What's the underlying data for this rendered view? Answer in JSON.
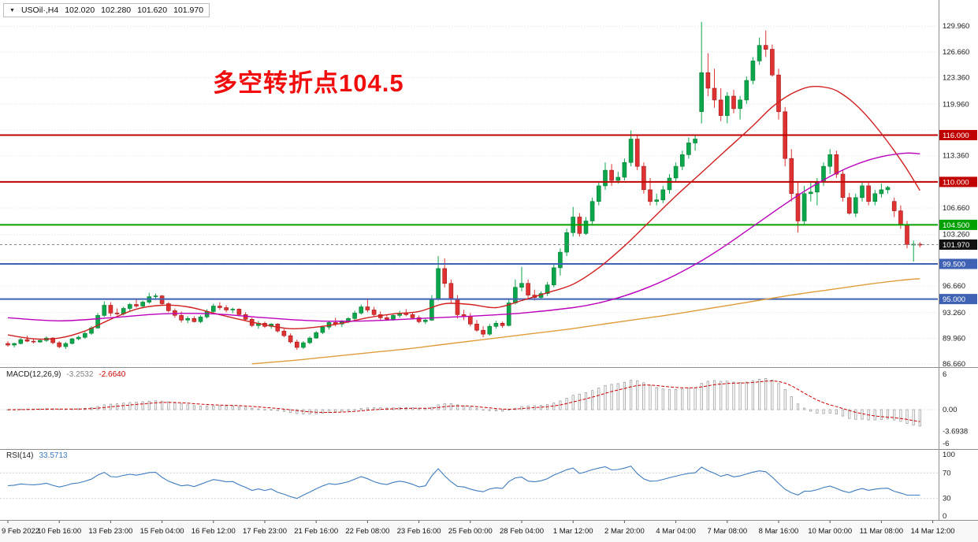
{
  "quote_bar": {
    "dropdown_icon": "▼",
    "symbol": "USOil·,H4",
    "open": "102.020",
    "high": "102.280",
    "low": "101.620",
    "close": "101.970"
  },
  "annotation": {
    "text": "多空转折点104.5",
    "color": "#f20d0d"
  },
  "macd_panel": {
    "label": "MACD(12,26,9)",
    "main_value": "-3.2532",
    "signal_value": "-2.6640"
  },
  "rsi_panel": {
    "label": "RSI(14)",
    "value": "33.5713"
  },
  "chart_data": {
    "type": "candlestick",
    "title": "USOil H4",
    "symbol": "USOil",
    "timeframe": "H4",
    "y_range": [
      86.3,
      132.5
    ],
    "x_labels": [
      "9 Feb 2022",
      "10 Feb 16:00",
      "13 Feb 23:00",
      "15 Feb 04:00",
      "16 Feb 12:00",
      "17 Feb 23:00",
      "21 Feb 16:00",
      "22 Feb 08:00",
      "23 Feb 16:00",
      "25 Feb 00:00",
      "28 Feb 04:00",
      "1 Mar 12:00",
      "2 Mar 20:00",
      "4 Mar 04:00",
      "7 Mar 08:00",
      "8 Mar 16:00",
      "10 Mar 00:00",
      "11 Mar 08:00",
      "14 Mar 12:00"
    ],
    "price_grid_levels": [
      86.66,
      89.96,
      93.26,
      96.66,
      99.96,
      103.26,
      106.66,
      109.96,
      113.36,
      116.66,
      119.96,
      123.36,
      126.66,
      129.96
    ],
    "price_axis_labels": [
      {
        "v": 129.96,
        "t": "129.960"
      },
      {
        "v": 126.66,
        "t": "126.660"
      },
      {
        "v": 123.36,
        "t": "123.360"
      },
      {
        "v": 119.96,
        "t": "119.960"
      },
      {
        "v": 113.36,
        "t": "113.360"
      },
      {
        "v": 106.66,
        "t": "106.660"
      },
      {
        "v": 103.26,
        "t": "103.260"
      },
      {
        "v": 96.66,
        "t": "96.660"
      },
      {
        "v": 93.26,
        "t": "93.260"
      },
      {
        "v": 89.96,
        "t": "89.960"
      },
      {
        "v": 86.66,
        "t": "86.660"
      }
    ],
    "levels": [
      {
        "price": 116.0,
        "label": "116.000",
        "color": "#c00000",
        "width": 2
      },
      {
        "price": 110.0,
        "label": "110.000",
        "color": "#c00000",
        "width": 2
      },
      {
        "price": 104.5,
        "label": "104.500",
        "color": "#00a000",
        "width": 2
      },
      {
        "price": 101.97,
        "label": "101.970",
        "color": "#111111",
        "width": 1,
        "style": "current"
      },
      {
        "price": 99.5,
        "label": "99.500",
        "color": "#3f62b5",
        "width": 2
      },
      {
        "price": 95.0,
        "label": "95.000",
        "color": "#3f62b5",
        "width": 2
      }
    ],
    "ma_lines": [
      {
        "name": "ma-fast-red",
        "color": "#d02020",
        "points": [
          [
            0,
            90.4
          ],
          [
            4,
            89.9
          ],
          [
            8,
            90.0
          ],
          [
            12,
            90.9
          ],
          [
            16,
            92.4
          ],
          [
            20,
            93.7
          ],
          [
            24,
            94.2
          ],
          [
            28,
            94.0
          ],
          [
            32,
            93.2
          ],
          [
            36,
            92.4
          ],
          [
            40,
            91.7
          ],
          [
            44,
            91.2
          ],
          [
            48,
            91.4
          ],
          [
            52,
            91.9
          ],
          [
            56,
            92.6
          ],
          [
            60,
            93.1
          ],
          [
            64,
            93.4
          ],
          [
            68,
            94.4
          ],
          [
            72,
            94.3
          ],
          [
            76,
            93.9
          ],
          [
            80,
            94.8
          ],
          [
            84,
            95.8
          ],
          [
            88,
            96.9
          ],
          [
            92,
            99.0
          ],
          [
            96,
            101.8
          ],
          [
            100,
            105.0
          ],
          [
            104,
            108.2
          ],
          [
            108,
            111.2
          ],
          [
            112,
            114.2
          ],
          [
            116,
            117.2
          ],
          [
            119,
            119.6
          ],
          [
            122,
            121.3
          ],
          [
            125,
            122.2
          ],
          [
            128,
            122.0
          ],
          [
            130,
            121.2
          ],
          [
            132,
            119.9
          ],
          [
            134,
            118.2
          ],
          [
            136,
            116.2
          ],
          [
            138,
            114.0
          ],
          [
            140,
            111.6
          ],
          [
            142,
            108.9
          ]
        ]
      },
      {
        "name": "ma-mid-magenta",
        "color": "#bb00bb",
        "points": [
          [
            0,
            92.6
          ],
          [
            8,
            92.2
          ],
          [
            16,
            92.6
          ],
          [
            24,
            93.1
          ],
          [
            32,
            93.1
          ],
          [
            40,
            92.6
          ],
          [
            48,
            92.2
          ],
          [
            56,
            92.2
          ],
          [
            64,
            92.5
          ],
          [
            72,
            92.8
          ],
          [
            80,
            93.2
          ],
          [
            88,
            93.9
          ],
          [
            92,
            94.5
          ],
          [
            96,
            95.4
          ],
          [
            100,
            96.6
          ],
          [
            104,
            98.1
          ],
          [
            108,
            99.9
          ],
          [
            112,
            102.0
          ],
          [
            116,
            104.3
          ],
          [
            120,
            106.6
          ],
          [
            124,
            108.8
          ],
          [
            128,
            110.7
          ],
          [
            131,
            111.9
          ],
          [
            134,
            112.8
          ],
          [
            137,
            113.4
          ],
          [
            140,
            113.7
          ],
          [
            142,
            113.6
          ]
        ]
      },
      {
        "name": "ma-slow-orange",
        "color": "#e09c3c",
        "points": [
          [
            38,
            86.7
          ],
          [
            44,
            87.1
          ],
          [
            50,
            87.6
          ],
          [
            56,
            88.1
          ],
          [
            62,
            88.6
          ],
          [
            68,
            89.2
          ],
          [
            74,
            89.8
          ],
          [
            80,
            90.4
          ],
          [
            86,
            91.0
          ],
          [
            92,
            91.7
          ],
          [
            98,
            92.4
          ],
          [
            104,
            93.1
          ],
          [
            110,
            93.9
          ],
          [
            116,
            94.7
          ],
          [
            122,
            95.5
          ],
          [
            128,
            96.2
          ],
          [
            134,
            96.9
          ],
          [
            139,
            97.4
          ],
          [
            142,
            97.6
          ]
        ]
      }
    ],
    "ohlc": [
      [
        89.3,
        89.6,
        88.9,
        89.1
      ],
      [
        89.1,
        89.4,
        88.8,
        89.3
      ],
      [
        89.3,
        90.0,
        89.2,
        89.8
      ],
      [
        89.8,
        90.3,
        89.5,
        89.6
      ],
      [
        89.6,
        89.9,
        89.3,
        89.5
      ],
      [
        89.5,
        89.9,
        89.4,
        89.7
      ],
      [
        89.7,
        90.2,
        89.5,
        90.0
      ],
      [
        90.0,
        90.1,
        89.2,
        89.4
      ],
      [
        89.4,
        89.6,
        88.7,
        88.9
      ],
      [
        88.9,
        89.5,
        88.6,
        89.3
      ],
      [
        89.3,
        90.0,
        89.2,
        89.9
      ],
      [
        89.9,
        90.3,
        89.7,
        90.1
      ],
      [
        90.1,
        90.8,
        89.9,
        90.6
      ],
      [
        90.6,
        91.5,
        90.4,
        91.3
      ],
      [
        91.3,
        93.2,
        91.2,
        92.9
      ],
      [
        92.9,
        94.7,
        92.7,
        94.2
      ],
      [
        94.2,
        94.6,
        92.8,
        93.2
      ],
      [
        93.2,
        93.8,
        92.9,
        93.1
      ],
      [
        93.1,
        94.0,
        92.9,
        93.8
      ],
      [
        93.8,
        94.5,
        93.4,
        94.3
      ],
      [
        94.3,
        95.0,
        93.9,
        94.1
      ],
      [
        94.1,
        94.8,
        93.8,
        94.6
      ],
      [
        94.6,
        95.8,
        94.4,
        95.3
      ],
      [
        95.3,
        95.7,
        94.9,
        95.4
      ],
      [
        95.4,
        95.5,
        94.2,
        94.4
      ],
      [
        94.4,
        94.6,
        93.3,
        93.5
      ],
      [
        93.5,
        93.8,
        92.6,
        92.9
      ],
      [
        92.9,
        93.4,
        92.0,
        92.3
      ],
      [
        92.3,
        92.8,
        91.9,
        92.5
      ],
      [
        92.5,
        92.8,
        92.0,
        92.1
      ],
      [
        92.1,
        92.9,
        91.9,
        92.7
      ],
      [
        92.7,
        93.7,
        92.5,
        93.4
      ],
      [
        93.4,
        94.4,
        93.2,
        94.1
      ],
      [
        94.1,
        94.6,
        93.6,
        93.9
      ],
      [
        93.9,
        94.2,
        93.3,
        93.6
      ],
      [
        93.6,
        93.9,
        93.2,
        93.7
      ],
      [
        93.7,
        93.8,
        92.8,
        93.0
      ],
      [
        93.0,
        93.3,
        92.2,
        92.4
      ],
      [
        92.4,
        92.6,
        91.4,
        91.6
      ],
      [
        91.6,
        92.2,
        91.2,
        91.9
      ],
      [
        91.9,
        92.1,
        91.3,
        91.5
      ],
      [
        91.5,
        91.9,
        91.2,
        91.8
      ],
      [
        91.8,
        91.9,
        90.7,
        90.9
      ],
      [
        90.9,
        91.2,
        90.1,
        90.3
      ],
      [
        90.3,
        90.6,
        89.3,
        89.5
      ],
      [
        89.5,
        89.8,
        88.5,
        88.8
      ],
      [
        88.8,
        89.6,
        88.6,
        89.4
      ],
      [
        89.4,
        90.2,
        89.2,
        90.0
      ],
      [
        90.0,
        90.9,
        89.9,
        90.7
      ],
      [
        90.7,
        91.6,
        90.5,
        91.4
      ],
      [
        91.4,
        92.2,
        91.1,
        92.0
      ],
      [
        92.0,
        92.6,
        91.5,
        91.8
      ],
      [
        91.8,
        92.3,
        91.4,
        92.1
      ],
      [
        92.1,
        92.7,
        91.9,
        92.5
      ],
      [
        92.5,
        93.5,
        92.3,
        93.2
      ],
      [
        93.2,
        94.3,
        93.0,
        94.0
      ],
      [
        94.0,
        95.0,
        93.3,
        93.6
      ],
      [
        93.6,
        94.0,
        92.8,
        93.0
      ],
      [
        93.0,
        93.4,
        92.3,
        92.6
      ],
      [
        92.6,
        93.0,
        92.2,
        92.4
      ],
      [
        92.4,
        93.1,
        92.2,
        92.9
      ],
      [
        92.9,
        93.5,
        92.6,
        93.2
      ],
      [
        93.2,
        93.7,
        92.8,
        93.0
      ],
      [
        93.0,
        93.3,
        92.4,
        92.6
      ],
      [
        92.6,
        92.9,
        91.9,
        92.1
      ],
      [
        92.1,
        92.5,
        91.8,
        92.3
      ],
      [
        92.3,
        95.5,
        92.2,
        95.0
      ],
      [
        95.0,
        100.5,
        94.8,
        98.9
      ],
      [
        98.9,
        100.2,
        96.5,
        97.0
      ],
      [
        97.0,
        97.5,
        94.5,
        95.0
      ],
      [
        95.0,
        95.5,
        92.5,
        93.0
      ],
      [
        93.0,
        93.6,
        92.3,
        92.8
      ],
      [
        92.8,
        93.2,
        91.5,
        91.8
      ],
      [
        91.8,
        92.3,
        90.8,
        91.0
      ],
      [
        91.0,
        91.5,
        90.1,
        90.5
      ],
      [
        90.5,
        91.8,
        90.3,
        91.5
      ],
      [
        91.5,
        92.2,
        91.2,
        91.9
      ],
      [
        91.9,
        92.1,
        91.3,
        91.6
      ],
      [
        91.6,
        95.0,
        91.5,
        94.5
      ],
      [
        94.5,
        97.5,
        94.3,
        96.5
      ],
      [
        96.5,
        99.1,
        96.0,
        97.0
      ],
      [
        97.0,
        97.5,
        95.0,
        95.5
      ],
      [
        95.5,
        96.2,
        94.8,
        95.2
      ],
      [
        95.2,
        96.0,
        95.0,
        95.7
      ],
      [
        95.7,
        97.2,
        95.4,
        96.8
      ],
      [
        96.8,
        99.5,
        96.5,
        99.0
      ],
      [
        99.0,
        101.5,
        98.0,
        101.0
      ],
      [
        101.0,
        104.0,
        100.5,
        103.5
      ],
      [
        103.5,
        106.8,
        103.0,
        105.5
      ],
      [
        105.5,
        106.0,
        103.0,
        103.4
      ],
      [
        103.4,
        105.5,
        103.2,
        105.0
      ],
      [
        105.0,
        108.0,
        104.5,
        107.5
      ],
      [
        107.5,
        110.0,
        107.0,
        109.5
      ],
      [
        109.5,
        112.5,
        109.0,
        111.5
      ],
      [
        111.5,
        112.3,
        109.5,
        110.2
      ],
      [
        110.2,
        111.3,
        109.8,
        110.6
      ],
      [
        110.6,
        113.0,
        110.2,
        112.5
      ],
      [
        112.5,
        116.6,
        112.0,
        115.5
      ],
      [
        115.5,
        116.0,
        111.5,
        112.0
      ],
      [
        112.0,
        112.5,
        108.5,
        109.0
      ],
      [
        109.0,
        110.5,
        107.0,
        107.5
      ],
      [
        107.5,
        108.5,
        107.0,
        107.7
      ],
      [
        107.7,
        109.5,
        107.3,
        109.0
      ],
      [
        109.0,
        111.0,
        108.5,
        110.5
      ],
      [
        110.5,
        112.5,
        110.0,
        112.0
      ],
      [
        112.0,
        114.0,
        111.5,
        113.5
      ],
      [
        113.5,
        115.7,
        113.0,
        115.0
      ],
      [
        115.0,
        116.0,
        114.0,
        115.5
      ],
      [
        119.0,
        130.5,
        117.5,
        124.0
      ],
      [
        124.0,
        126.5,
        121.0,
        122.0
      ],
      [
        122.0,
        124.5,
        119.5,
        120.5
      ],
      [
        120.5,
        122.0,
        117.8,
        118.5
      ],
      [
        118.5,
        121.5,
        117.5,
        121.0
      ],
      [
        121.0,
        121.8,
        118.8,
        119.4
      ],
      [
        119.4,
        121.0,
        118.0,
        120.5
      ],
      [
        120.5,
        123.5,
        120.0,
        123.0
      ],
      [
        123.0,
        126.0,
        122.5,
        125.5
      ],
      [
        125.5,
        128.5,
        125.0,
        127.5
      ],
      [
        127.5,
        129.4,
        126.0,
        127.0
      ],
      [
        127.0,
        127.6,
        123.5,
        123.7
      ],
      [
        123.7,
        124.5,
        118.0,
        119.0
      ],
      [
        119.0,
        119.6,
        112.0,
        113.0
      ],
      [
        113.0,
        114.2,
        107.5,
        108.5
      ],
      [
        108.5,
        110.0,
        103.5,
        105.0
      ],
      [
        105.0,
        109.5,
        104.5,
        108.5
      ],
      [
        108.5,
        110.1,
        107.5,
        108.7
      ],
      [
        108.7,
        110.5,
        107.0,
        110.0
      ],
      [
        110.0,
        112.5,
        109.5,
        112.0
      ],
      [
        112.0,
        114.2,
        111.0,
        113.5
      ],
      [
        113.5,
        114.0,
        110.5,
        111.0
      ],
      [
        111.0,
        111.5,
        107.5,
        108.0
      ],
      [
        108.0,
        108.6,
        105.8,
        106.0
      ],
      [
        106.0,
        108.5,
        105.5,
        108.0
      ],
      [
        108.0,
        110.0,
        107.5,
        109.5
      ],
      [
        109.5,
        110.0,
        107.0,
        107.5
      ],
      [
        107.5,
        109.0,
        107.0,
        108.5
      ],
      [
        108.5,
        109.8,
        108.0,
        109.0
      ],
      [
        109.0,
        109.5,
        108.5,
        109.3
      ],
      [
        107.5,
        108.0,
        105.5,
        106.3
      ],
      [
        106.3,
        107.0,
        104.0,
        104.5
      ],
      [
        104.5,
        105.0,
        101.5,
        102.0
      ],
      [
        102.0,
        102.5,
        99.8,
        102.02
      ],
      [
        102.02,
        102.28,
        101.62,
        101.97
      ]
    ],
    "macd": {
      "fast": 12,
      "slow": 26,
      "signal": 9,
      "current_main": -3.2532,
      "current_signal": -2.664,
      "histogram_color": "#a0a0a0",
      "signal_color": "#cc0000",
      "axis_labels": [
        {
          "v": 6,
          "t": "6"
        },
        {
          "v": 0,
          "t": "0.00"
        },
        {
          "v": -3.6938,
          "t": "-3.6938"
        },
        {
          "v": -6,
          "t": "-6"
        }
      ]
    },
    "rsi": {
      "period": 14,
      "current": 33.5713,
      "line_color": "#3e7bbf",
      "levels": [
        70,
        30
      ],
      "axis_labels": [
        {
          "v": 100,
          "t": "100"
        },
        {
          "v": 70,
          "t": "70"
        },
        {
          "v": 30,
          "t": "30"
        },
        {
          "v": 0,
          "t": "0"
        }
      ]
    },
    "colors": {
      "up": "#0aa64b",
      "up_border": "#067d33",
      "down": "#e03232",
      "down_border": "#a01818",
      "grid": "#e3e3e3",
      "axis_text": "#1a1a1a",
      "separator": "#8f8f8f",
      "current_price_badge": "#111111",
      "current_price_line": "#888888"
    }
  }
}
